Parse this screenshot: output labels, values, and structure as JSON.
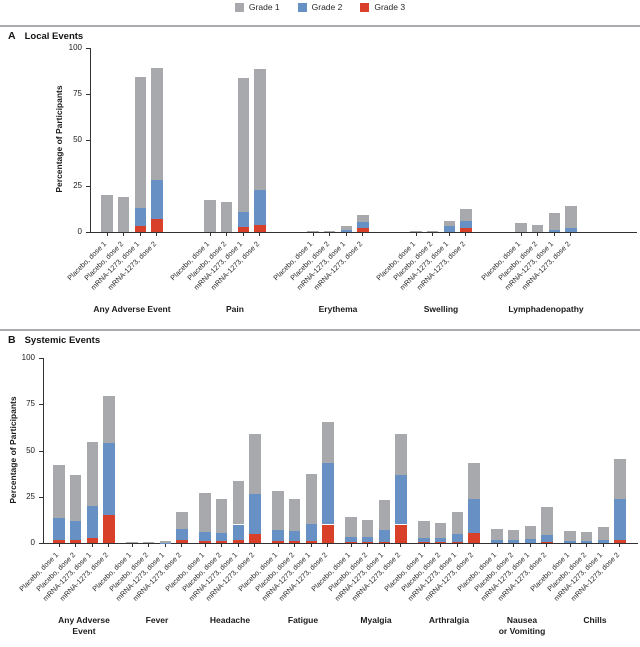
{
  "legend": {
    "items": [
      {
        "label": "Grade 1",
        "color": "#a7a9ac"
      },
      {
        "label": "Grade 2",
        "color": "#6791c4"
      },
      {
        "label": "Grade 3",
        "color": "#d9402a"
      }
    ]
  },
  "panel_a": {
    "letter": "A",
    "title": "Local Events"
  },
  "panel_b": {
    "letter": "B",
    "title": "Systemic Events"
  },
  "chart_data": [
    {
      "type": "bar",
      "stacked": true,
      "panel": "A",
      "title": "Local Events",
      "ylabel": "Percentage of Participants",
      "ylim": [
        0,
        100
      ],
      "yticks": [
        0,
        25,
        50,
        75,
        100
      ],
      "grid": false,
      "legend_position": "top",
      "series_names": [
        "Grade 1",
        "Grade 2",
        "Grade 3"
      ],
      "stack_order_bottom_to_top": [
        "Grade 3",
        "Grade 2",
        "Grade 1"
      ],
      "value_order": [
        "Grade 1",
        "Grade 2",
        "Grade 3"
      ],
      "bar_labels": [
        "Placebo, dose 1",
        "Placebo, dose 2",
        "mRNA-1273, dose 1",
        "mRNA-1273, dose 2"
      ],
      "groups": [
        {
          "label": "Any Adverse Event",
          "values": [
            [
              20,
              0,
              0
            ],
            [
              19,
              0,
              0
            ],
            [
              71,
              9.5,
              3.5
            ],
            [
              60.5,
              21.5,
              7
            ]
          ]
        },
        {
          "label": "Pain",
          "values": [
            [
              17.5,
              0,
              0
            ],
            [
              16.5,
              0,
              0
            ],
            [
              72.5,
              8.5,
              2.5
            ],
            [
              65.5,
              19,
              4
            ]
          ]
        },
        {
          "label": "Erythema",
          "values": [
            [
              0.4,
              0,
              0
            ],
            [
              0.4,
              0,
              0
            ],
            [
              2,
              1,
              0
            ],
            [
              3.5,
              3.5,
              2
            ]
          ]
        },
        {
          "label": "Swelling",
          "values": [
            [
              0.4,
              0,
              0
            ],
            [
              0.4,
              0,
              0
            ],
            [
              3,
              3,
              0
            ],
            [
              6.5,
              4,
              2
            ]
          ]
        },
        {
          "label": "Lymphadenopathy",
          "values": [
            [
              4.8,
              0,
              0
            ],
            [
              3.7,
              0,
              0
            ],
            [
              9.2,
              1,
              0
            ],
            [
              12,
              2.2,
              0
            ]
          ]
        }
      ]
    },
    {
      "type": "bar",
      "stacked": true,
      "panel": "B",
      "title": "Systemic Events",
      "ylabel": "Percentage of Participants",
      "ylim": [
        0,
        100
      ],
      "yticks": [
        0,
        25,
        50,
        75,
        100
      ],
      "grid": false,
      "legend_position": "top",
      "series_names": [
        "Grade 1",
        "Grade 2",
        "Grade 3"
      ],
      "stack_order_bottom_to_top": [
        "Grade 3",
        "Grade 2",
        "Grade 1"
      ],
      "value_order": [
        "Grade 1",
        "Grade 2",
        "Grade 3"
      ],
      "bar_labels": [
        "Placebo, dose 1",
        "Placebo, dose 2",
        "mRNA-1273, dose 1",
        "mRNA-1273, dose 2"
      ],
      "groups": [
        {
          "label": "Any Adverse\nEvent",
          "values": [
            [
              28.5,
              12,
              1.5
            ],
            [
              24.5,
              10.5,
              1.5
            ],
            [
              35,
              17,
              2.8
            ],
            [
              25.2,
              39,
              15.2
            ]
          ]
        },
        {
          "label": "Fever",
          "values": [
            [
              0.4,
              0,
              0
            ],
            [
              0.4,
              0,
              0
            ],
            [
              0.8,
              0.1,
              0
            ],
            [
              8.8,
              6.2,
              1.5
            ]
          ]
        },
        {
          "label": "Headache",
          "values": [
            [
              21,
              5,
              1
            ],
            [
              18.5,
              4.5,
              1
            ],
            [
              23.5,
              8.5,
              1.5
            ],
            [
              32.5,
              21.5,
              5
            ]
          ]
        },
        {
          "label": "Fatigue",
          "values": [
            [
              21,
              6,
              1
            ],
            [
              17.5,
              5.5,
              1
            ],
            [
              27,
              9.5,
              1
            ],
            [
              22.5,
              33,
              10
            ]
          ]
        },
        {
          "label": "Myalgia",
          "values": [
            [
              10.5,
              3,
              0.5
            ],
            [
              9.5,
              2.5,
              0.5
            ],
            [
              16,
              6.4,
              0.6
            ],
            [
              22,
              27,
              10
            ]
          ]
        },
        {
          "label": "Arthralgia",
          "values": [
            [
              9.5,
              2,
              0.5
            ],
            [
              8.5,
              2,
              0.5
            ],
            [
              11.8,
              4.5,
              0.5
            ],
            [
              19.5,
              18.5,
              5.5
            ]
          ]
        },
        {
          "label": "Nausea\nor Vomiting",
          "values": [
            [
              6,
              1.5,
              0
            ],
            [
              5.5,
              1.5,
              0
            ],
            [
              7.3,
              2,
              0
            ],
            [
              15.3,
              4,
              0.3
            ]
          ]
        },
        {
          "label": "Chills",
          "values": [
            [
              5.5,
              1,
              0
            ],
            [
              5.2,
              1,
              0
            ],
            [
              7.3,
              1.5,
              0
            ],
            [
              21.3,
              22.5,
              1.5
            ]
          ]
        }
      ]
    }
  ]
}
